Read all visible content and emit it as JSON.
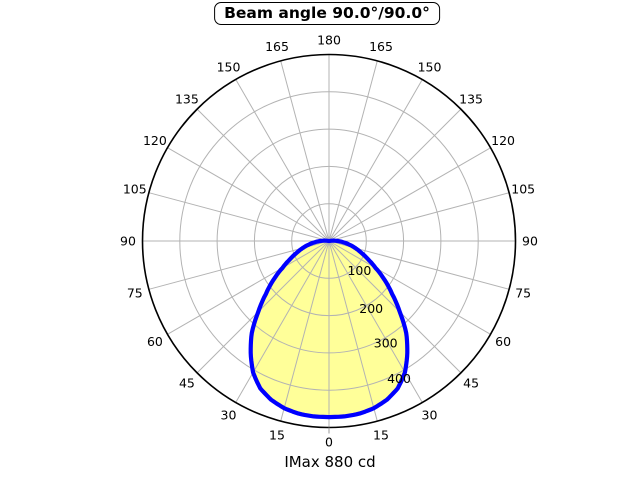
{
  "title": "Beam angle 90.0°/90.0°",
  "caption": "IMax 880 cd",
  "chart_data": {
    "type": "polar",
    "title": "Beam angle 90.0°/90.0°",
    "caption": "IMax 880 cd",
    "beam_angle_deg": [
      90.0,
      90.0
    ],
    "imax_cd": 880,
    "orientation": "0° at bottom, angles increase to 180° at top, labels mirrored left and right",
    "theta_tick_step_deg": 15,
    "theta_tick_labels": [
      "0",
      "15",
      "30",
      "45",
      "60",
      "75",
      "90",
      "105",
      "120",
      "135",
      "150",
      "165",
      "180"
    ],
    "r_rings": [
      100,
      200,
      300,
      400,
      500
    ],
    "r_tick_labels": [
      "100",
      "200",
      "300",
      "400"
    ],
    "r_max": 500,
    "grid": true,
    "legend": false,
    "series": [
      {
        "name": "luminous-intensity-distribution",
        "symmetric": true,
        "angles_deg": [
          0,
          5,
          10,
          15,
          20,
          25,
          30,
          35,
          40,
          45,
          50,
          55,
          60,
          65,
          70,
          75,
          80,
          85,
          90,
          95,
          100
        ],
        "values": [
          472,
          472,
          470,
          464,
          453,
          436,
          407,
          366,
          322,
          268,
          221,
          182,
          144,
          115,
          92,
          73,
          55,
          38,
          24,
          11,
          0
        ]
      }
    ],
    "colors": {
      "beam_fill": "#ffff99",
      "beam_stroke": "#0000ff",
      "grid_line": "#b3b3b3",
      "outer_ring": "#000000",
      "text": "#000000",
      "background": "#ffffff"
    }
  }
}
